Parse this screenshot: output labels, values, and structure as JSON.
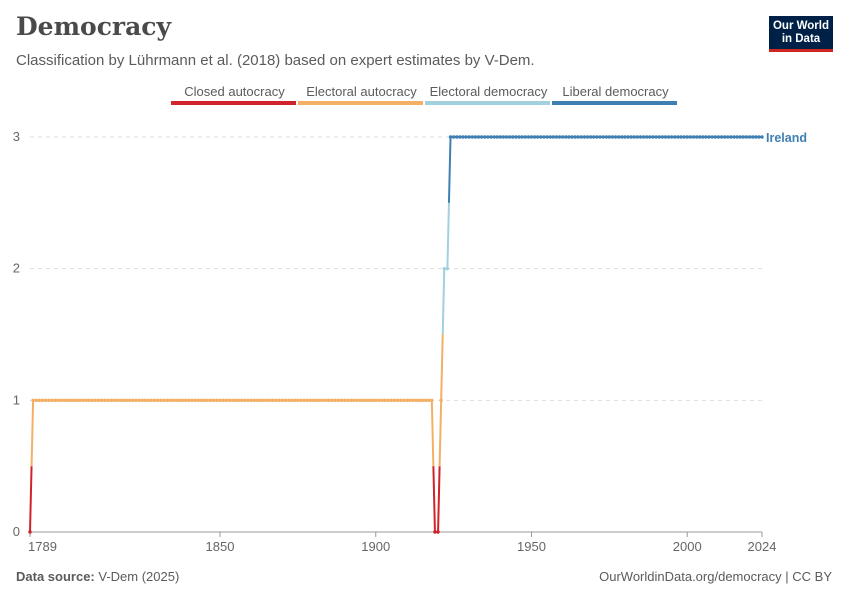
{
  "header": {
    "title": "Democracy",
    "subtitle": "Classification by Lührmann et al. (2018) based on expert estimates by V-Dem.",
    "logo_line1": "Our World",
    "logo_line2": "in Data"
  },
  "footer": {
    "source_label": "Data source:",
    "source_value": "V-Dem (2025)",
    "url": "OurWorldinData.org/democracy | CC BY"
  },
  "colors": {
    "closed_autocracy": "#d0232b",
    "electoral_autocracy": "#f3b064",
    "electoral_democracy": "#a2d0dc",
    "liberal_democracy": "#3e7fb4",
    "grid": "#dddddd",
    "axis": "#999999"
  },
  "chart_data": {
    "type": "line",
    "title": "Democracy",
    "legend_placement": "top",
    "legend": [
      {
        "label": "Closed autocracy",
        "level": 0,
        "color": "#d0232b"
      },
      {
        "label": "Electoral autocracy",
        "level": 1,
        "color": "#f3b064"
      },
      {
        "label": "Electoral democracy",
        "level": 2,
        "color": "#a2d0dc"
      },
      {
        "label": "Liberal democracy",
        "level": 3,
        "color": "#3e7fb4"
      }
    ],
    "xlim": [
      1789,
      2024
    ],
    "ylim": [
      0,
      3
    ],
    "x_ticks": [
      1789,
      1850,
      1900,
      1950,
      2000,
      2024
    ],
    "y_ticks": [
      0,
      1,
      2,
      3
    ],
    "grid": "horizontal dashed",
    "series": [
      {
        "name": "Ireland",
        "segments": [
          {
            "start": 1789,
            "end": 1789,
            "value": 0
          },
          {
            "start": 1790,
            "end": 1918,
            "value": 1
          },
          {
            "start": 1919,
            "end": 1920,
            "value": 0
          },
          {
            "start": 1921,
            "end": 1921,
            "value": 1
          },
          {
            "start": 1922,
            "end": 1923,
            "value": 2
          },
          {
            "start": 1924,
            "end": 2024,
            "value": 3
          }
        ]
      }
    ]
  }
}
